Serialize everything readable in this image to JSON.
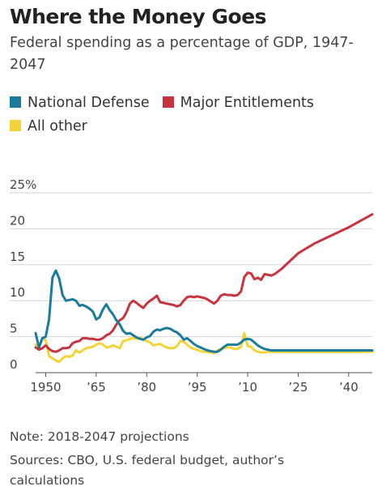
{
  "title": "Where the Money Goes",
  "subtitle": "Federal spending as a percentage of GDP, 1947-2047",
  "legend": [
    {
      "label": "National Defense",
      "color": "#1a7b9c"
    },
    {
      "label": "Major Entitlements",
      "color": "#c8343e"
    },
    {
      "label": "All other",
      "color": "#f2d43a"
    }
  ],
  "note": "Note: 2018-2047 projections",
  "sources": "Sources: CBO, U.S. federal budget, author’s calculations",
  "chart_data": {
    "type": "line",
    "title": "Where the Money Goes",
    "subtitle": "Federal spending as a percentage of GDP, 1947-2047",
    "xlim": [
      1947,
      2047
    ],
    "ylim": [
      0,
      25
    ],
    "y_ticks": [
      0,
      5,
      10,
      15,
      20,
      25
    ],
    "y_tick_labels": [
      "0",
      "5",
      "10",
      "15",
      "20",
      "25%"
    ],
    "x_ticks": [
      1950,
      1965,
      1980,
      1995,
      2010,
      2025,
      2040
    ],
    "x_tick_labels": [
      "1950",
      "’65",
      "’80",
      "’95",
      "’10",
      "’25",
      "’40"
    ],
    "grid": true,
    "legend_position": "top",
    "series": [
      {
        "name": "National Defense",
        "color": "#1a7b9c",
        "x": [
          1947,
          1948,
          1949,
          1950,
          1951,
          1952,
          1953,
          1954,
          1955,
          1956,
          1957,
          1958,
          1959,
          1960,
          1961,
          1962,
          1963,
          1964,
          1965,
          1966,
          1967,
          1968,
          1969,
          1970,
          1971,
          1972,
          1973,
          1974,
          1975,
          1976,
          1977,
          1978,
          1979,
          1980,
          1981,
          1982,
          1983,
          1984,
          1985,
          1986,
          1987,
          1988,
          1989,
          1990,
          1991,
          1992,
          1993,
          1994,
          1995,
          1996,
          1997,
          1998,
          1999,
          2000,
          2001,
          2002,
          2003,
          2004,
          2005,
          2006,
          2007,
          2008,
          2009,
          2010,
          2011,
          2012,
          2013,
          2014,
          2015,
          2016,
          2017,
          2018,
          2020,
          2025,
          2030,
          2035,
          2040,
          2047
        ],
        "values": [
          5.5,
          3.5,
          4.8,
          5.0,
          7.4,
          13.2,
          14.2,
          13.1,
          10.8,
          10.0,
          10.1,
          10.2,
          10.0,
          9.3,
          9.4,
          9.2,
          8.9,
          8.5,
          7.4,
          7.7,
          8.8,
          9.5,
          8.7,
          8.1,
          7.3,
          6.7,
          5.8,
          5.4,
          5.5,
          5.2,
          4.9,
          4.7,
          4.6,
          4.9,
          5.1,
          5.7,
          6.0,
          5.9,
          6.1,
          6.2,
          6.1,
          5.8,
          5.6,
          5.2,
          4.6,
          4.8,
          4.4,
          4.0,
          3.7,
          3.5,
          3.3,
          3.1,
          3.0,
          2.9,
          2.9,
          3.2,
          3.6,
          3.9,
          3.9,
          3.9,
          3.9,
          4.2,
          4.6,
          4.7,
          4.6,
          4.2,
          3.8,
          3.5,
          3.3,
          3.2,
          3.1,
          3.1,
          3.1,
          3.1,
          3.1,
          3.1,
          3.1,
          3.1
        ]
      },
      {
        "name": "Major Entitlements",
        "color": "#c8343e",
        "x": [
          1947,
          1948,
          1949,
          1950,
          1951,
          1952,
          1953,
          1954,
          1955,
          1956,
          1957,
          1958,
          1959,
          1960,
          1961,
          1962,
          1963,
          1964,
          1965,
          1966,
          1967,
          1968,
          1969,
          1970,
          1971,
          1972,
          1973,
          1974,
          1975,
          1976,
          1977,
          1978,
          1979,
          1980,
          1981,
          1982,
          1983,
          1984,
          1985,
          1986,
          1987,
          1988,
          1989,
          1990,
          1991,
          1992,
          1993,
          1994,
          1995,
          1996,
          1997,
          1998,
          1999,
          2000,
          2001,
          2002,
          2003,
          2004,
          2005,
          2006,
          2007,
          2008,
          2009,
          2010,
          2011,
          2012,
          2013,
          2014,
          2015,
          2016,
          2017,
          2018,
          2020,
          2025,
          2030,
          2035,
          2040,
          2047
        ],
        "values": [
          3.5,
          3.2,
          3.4,
          3.8,
          3.3,
          3.0,
          2.9,
          3.1,
          3.4,
          3.4,
          3.5,
          4.1,
          4.3,
          4.4,
          4.8,
          4.8,
          4.7,
          4.7,
          4.6,
          4.6,
          4.8,
          5.2,
          5.4,
          5.9,
          6.7,
          7.3,
          7.6,
          8.4,
          9.6,
          10.0,
          9.7,
          9.3,
          9.0,
          9.6,
          10.0,
          10.3,
          10.7,
          9.8,
          9.7,
          9.6,
          9.5,
          9.4,
          9.2,
          9.4,
          10.0,
          10.5,
          10.6,
          10.5,
          10.6,
          10.5,
          10.4,
          10.2,
          9.9,
          9.6,
          10.0,
          10.7,
          10.9,
          10.8,
          10.8,
          10.7,
          10.8,
          11.3,
          13.3,
          13.9,
          13.8,
          13.0,
          13.2,
          12.9,
          13.7,
          13.6,
          13.5,
          13.7,
          14.4,
          16.6,
          18.0,
          19.1,
          20.2,
          22.0
        ]
      },
      {
        "name": "All other",
        "color": "#f2d43a",
        "x": [
          1947,
          1948,
          1949,
          1950,
          1951,
          1952,
          1953,
          1954,
          1955,
          1956,
          1957,
          1958,
          1959,
          1960,
          1961,
          1962,
          1963,
          1964,
          1965,
          1966,
          1967,
          1968,
          1969,
          1970,
          1971,
          1972,
          1973,
          1974,
          1975,
          1976,
          1977,
          1978,
          1979,
          1980,
          1981,
          1982,
          1983,
          1984,
          1985,
          1986,
          1987,
          1988,
          1989,
          1990,
          1991,
          1992,
          1993,
          1994,
          1995,
          1996,
          1997,
          1998,
          1999,
          2000,
          2001,
          2002,
          2003,
          2004,
          2005,
          2006,
          2007,
          2008,
          2009,
          2010,
          2011,
          2012,
          2013,
          2014,
          2015,
          2016,
          2017,
          2018,
          2020,
          2025,
          2030,
          2035,
          2040,
          2047
        ],
        "values": [
          3.9,
          3.5,
          4.8,
          4.5,
          2.3,
          2.0,
          1.7,
          1.5,
          2.0,
          2.3,
          2.2,
          2.4,
          3.1,
          2.8,
          3.1,
          3.4,
          3.5,
          3.6,
          3.9,
          4.1,
          3.9,
          3.5,
          3.6,
          3.8,
          3.6,
          3.4,
          4.4,
          4.5,
          4.7,
          4.8,
          4.7,
          4.9,
          4.6,
          4.4,
          4.2,
          3.8,
          3.9,
          4.0,
          3.7,
          3.5,
          3.4,
          3.4,
          3.7,
          4.4,
          4.3,
          3.9,
          3.5,
          3.3,
          3.2,
          3.0,
          2.9,
          2.9,
          2.8,
          2.7,
          3.1,
          3.3,
          3.4,
          3.5,
          3.5,
          3.3,
          3.3,
          3.6,
          5.5,
          3.7,
          3.6,
          3.1,
          2.9,
          2.8,
          2.8,
          2.9,
          2.9,
          2.9,
          2.9,
          2.9,
          2.9,
          2.9,
          2.9,
          2.9
        ]
      }
    ]
  }
}
